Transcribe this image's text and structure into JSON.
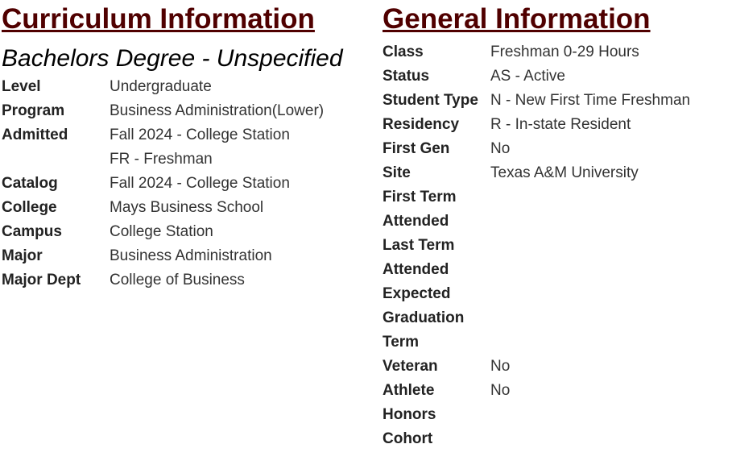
{
  "curriculum": {
    "heading": "Curriculum Information",
    "degree": "Bachelors Degree - Unspecified",
    "rows": [
      {
        "label": "Level",
        "values": [
          "Undergraduate"
        ]
      },
      {
        "label": "Program",
        "values": [
          "Business Administration(Lower)"
        ]
      },
      {
        "label": "Admitted",
        "values": [
          "Fall 2024 - College Station",
          "FR - Freshman"
        ]
      },
      {
        "label": "Catalog",
        "values": [
          "Fall 2024 - College Station"
        ]
      },
      {
        "label": "College",
        "values": [
          "Mays Business School"
        ]
      },
      {
        "label": "Campus",
        "values": [
          "College Station"
        ]
      },
      {
        "label": "Major",
        "values": [
          "Business Administration"
        ]
      },
      {
        "label": "Major Dept",
        "values": [
          "College of Business"
        ]
      }
    ]
  },
  "general": {
    "heading": "General Information",
    "rows": [
      {
        "label": "Class",
        "values": [
          "Freshman 0-29 Hours"
        ]
      },
      {
        "label": "Status",
        "values": [
          "AS - Active"
        ]
      },
      {
        "label": "Student Type",
        "values": [
          "N - New First Time Freshman"
        ]
      },
      {
        "label": "Residency",
        "values": [
          "R - In-state Resident"
        ]
      },
      {
        "label": "First Gen",
        "values": [
          "No"
        ]
      },
      {
        "label": "Site",
        "values": [
          "Texas A&M University"
        ]
      },
      {
        "label": "First Term Attended",
        "values": []
      },
      {
        "label": "Last Term Attended",
        "values": []
      },
      {
        "label": "Expected Graduation Term",
        "values": []
      },
      {
        "label": "Veteran",
        "values": [
          "No"
        ]
      },
      {
        "label": "Athlete",
        "values": [
          "No"
        ]
      },
      {
        "label": "Honors",
        "values": []
      },
      {
        "label": "Cohort",
        "values": []
      }
    ]
  },
  "colors": {
    "heading": "#500000"
  }
}
